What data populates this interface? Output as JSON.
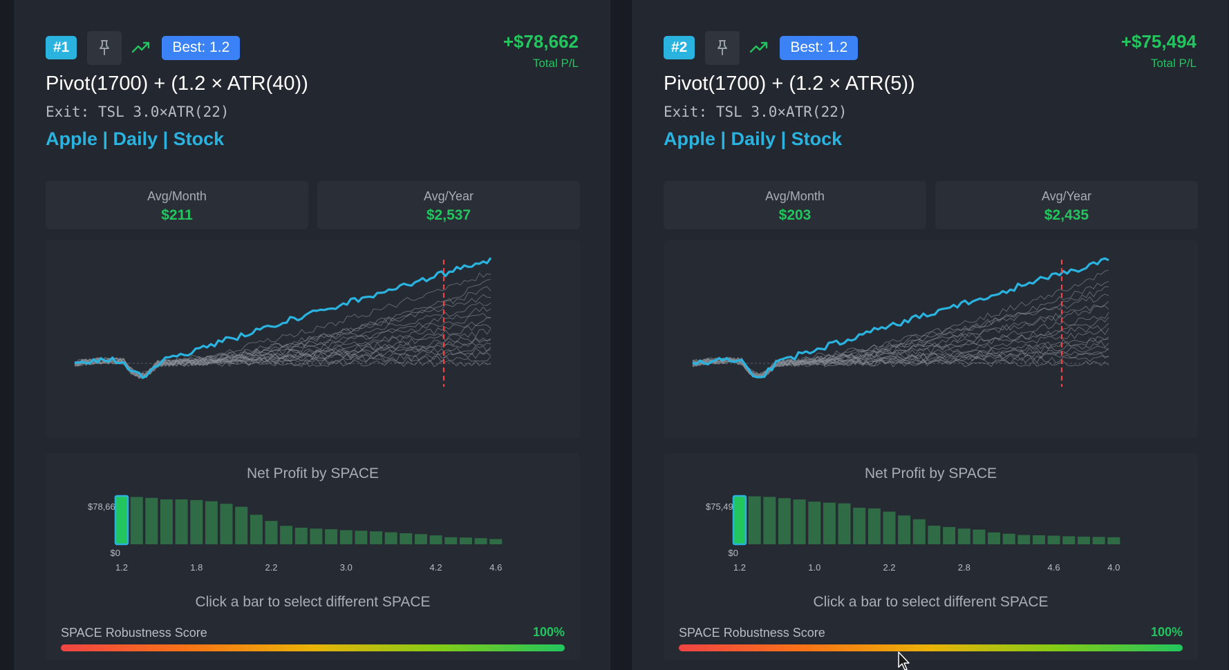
{
  "cards": [
    {
      "rank": "#1",
      "best": "Best: 1.2",
      "total_pl": "+$78,662",
      "total_pl_label": "Total P/L",
      "title": "Pivot(1700) + (1.2 × ATR(40))",
      "exit": "Exit: TSL 3.0×ATR(22)",
      "meta": "Apple | Daily | Stock",
      "avg_month_label": "Avg/Month",
      "avg_month": "$211",
      "avg_year_label": "Avg/Year",
      "avg_year": "$2,537",
      "space_title": "Net Profit by SPACE",
      "space_ymax_label": "$78,662",
      "space_ymin_label": "$0",
      "hint": "Click a bar to select different SPACE",
      "robustness_label": "SPACE Robustness Score",
      "robustness_value": "100%",
      "robustness_fraction": 1.0
    },
    {
      "rank": "#2",
      "best": "Best: 1.2",
      "total_pl": "+$75,494",
      "total_pl_label": "Total P/L",
      "title": "Pivot(1700) + (1.2 × ATR(5))",
      "exit": "Exit: TSL 3.0×ATR(22)",
      "meta": "Apple | Daily | Stock",
      "avg_month_label": "Avg/Month",
      "avg_month": "$203",
      "avg_year_label": "Avg/Year",
      "avg_year": "$2,435",
      "space_title": "Net Profit by SPACE",
      "space_ymax_label": "$75,494",
      "space_ymin_label": "$0",
      "hint": "Click a bar to select different SPACE",
      "robustness_label": "SPACE Robustness Score",
      "robustness_value": "100%",
      "robustness_fraction": 1.0
    }
  ],
  "icons": {
    "pin": "pin-icon",
    "trend": "trending-up-icon",
    "cursor": "mouse-cursor-icon"
  },
  "colors": {
    "accent": "#2bb3e0",
    "profit": "#22c55e",
    "best_badge": "#3b82f6",
    "marker": "#ef4444",
    "bar": "#2f6b45"
  },
  "chart_data": [
    {
      "type": "bar",
      "title": "Net Profit by SPACE",
      "categories": [
        "1.2",
        "",
        "",
        "",
        "",
        "1.8",
        "",
        "",
        "",
        "",
        "2.2",
        "",
        "",
        "",
        "",
        "3.0",
        "",
        "",
        "",
        "",
        "",
        "4.2",
        "",
        "",
        "",
        "4.6"
      ],
      "values": [
        78662,
        77000,
        75500,
        73000,
        73000,
        72000,
        70000,
        66000,
        61000,
        48000,
        38000,
        30000,
        27000,
        25500,
        24500,
        23000,
        22000,
        21000,
        19500,
        18000,
        16500,
        14500,
        11500,
        11000,
        10000,
        8500
      ],
      "selected_index": 0,
      "ylim": [
        0,
        78662
      ]
    },
    {
      "type": "bar",
      "title": "Net Profit by SPACE",
      "categories": [
        "1.2",
        "",
        "",
        "",
        "",
        "1.0",
        "",
        "",
        "",
        "",
        "2.2",
        "",
        "",
        "",
        "",
        "2.8",
        "",
        "",
        "",
        "",
        "",
        "4.6",
        "",
        "",
        "",
        "4.0"
      ],
      "values": [
        75494,
        75000,
        74000,
        72000,
        70000,
        66500,
        65000,
        64000,
        57000,
        56000,
        51000,
        45000,
        39000,
        29000,
        27000,
        24500,
        23000,
        18500,
        16500,
        14500,
        14000,
        13500,
        12500,
        12000,
        11500,
        11000
      ],
      "selected_index": 0,
      "ylim": [
        0,
        75494
      ]
    }
  ]
}
